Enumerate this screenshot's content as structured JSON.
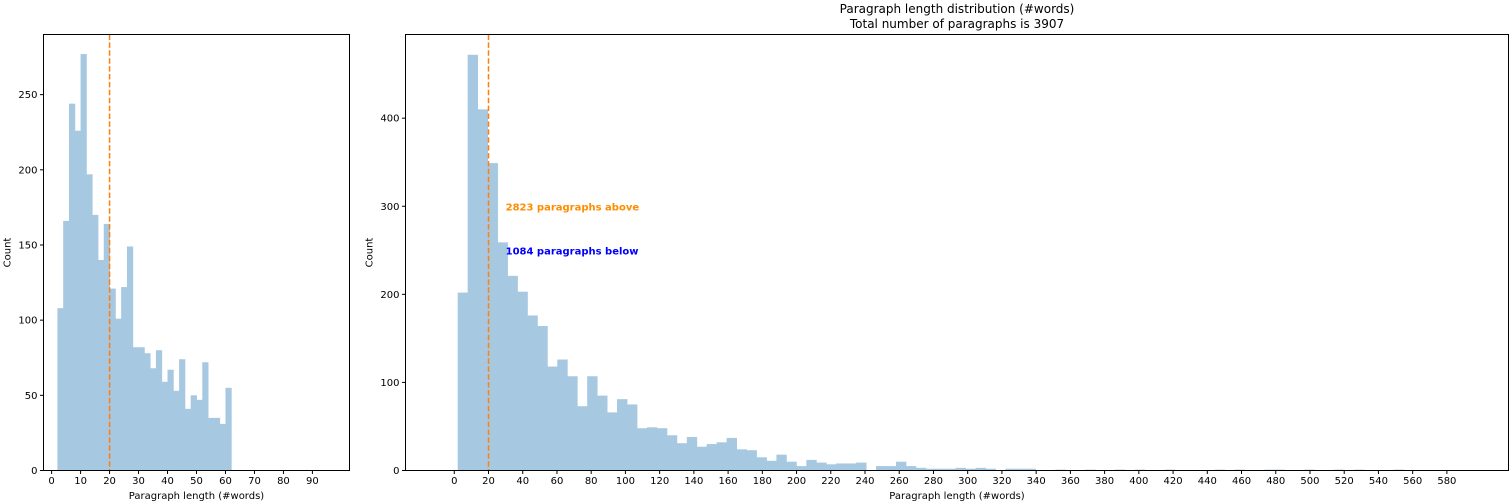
{
  "figure": {
    "title_line1": "Paragraph length distribution (#words)",
    "title_line2": "Total number of paragraphs is 3907"
  },
  "colors": {
    "bar": "#a6c8e0",
    "median_line": "#ff7f0e",
    "above_text": "#ff8c00",
    "below_text": "#0000ff",
    "axis": "#000000"
  },
  "chart_data": [
    {
      "type": "bar",
      "subtype": "histogram",
      "title": "",
      "xlabel": "Paragraph length (#words)",
      "ylabel": "Count",
      "xlim": [
        -2.8,
        102.8
      ],
      "ylim": [
        0,
        290
      ],
      "xticks": [
        0,
        10,
        20,
        30,
        40,
        50,
        60,
        70,
        80,
        90
      ],
      "yticks": [
        0,
        50,
        100,
        150,
        200,
        250
      ],
      "bins": {
        "start": 2,
        "width": 2
      },
      "values": [
        108,
        166,
        244,
        226,
        277,
        197,
        170,
        140,
        164,
        121,
        101,
        122,
        149,
        82,
        82,
        78,
        68,
        80,
        59,
        67,
        53,
        74,
        41,
        50,
        47,
        72,
        35,
        35,
        31,
        55
      ],
      "median_line_x": 20
    },
    {
      "type": "bar",
      "subtype": "histogram",
      "title": "",
      "xlabel": "Paragraph length (#words)",
      "ylabel": "Count",
      "xlim": [
        -28.5,
        616
      ],
      "ylim": [
        0,
        495
      ],
      "xticks": [
        0,
        20,
        40,
        60,
        80,
        100,
        120,
        140,
        160,
        180,
        200,
        220,
        240,
        260,
        280,
        300,
        320,
        340,
        360,
        380,
        400,
        420,
        440,
        460,
        480,
        500,
        520,
        540,
        560,
        580
      ],
      "yticks": [
        0,
        100,
        200,
        300,
        400
      ],
      "bins": {
        "start": 2,
        "width": 5.82
      },
      "values": [
        202,
        472,
        410,
        349,
        259,
        221,
        203,
        176,
        164,
        118,
        126,
        107,
        73,
        107,
        85,
        66,
        81,
        75,
        48,
        49,
        48,
        40,
        31,
        38,
        27,
        30,
        32,
        37,
        24,
        23,
        15,
        11,
        18,
        10,
        5,
        12,
        9,
        7,
        8,
        8,
        9,
        0,
        5,
        5,
        10,
        5,
        3,
        2,
        2,
        2,
        3,
        2,
        3,
        2,
        0,
        2,
        2,
        2,
        0,
        0,
        1,
        0,
        0,
        1,
        0,
        0,
        1,
        0,
        1,
        0,
        0,
        1,
        0,
        0,
        0,
        0,
        1,
        0,
        1,
        0,
        0,
        1,
        1,
        0,
        0,
        1,
        0,
        0,
        1,
        0,
        1,
        0,
        0,
        0,
        1,
        0,
        0,
        0,
        0,
        0
      ],
      "median_line_x": 20,
      "annotations": [
        {
          "text": "2823 paragraphs above",
          "x": 30,
          "y": 300,
          "color": "#ff8c00"
        },
        {
          "text": "1084 paragraphs below",
          "x": 30,
          "y": 250,
          "color": "#0000ff"
        }
      ]
    }
  ]
}
